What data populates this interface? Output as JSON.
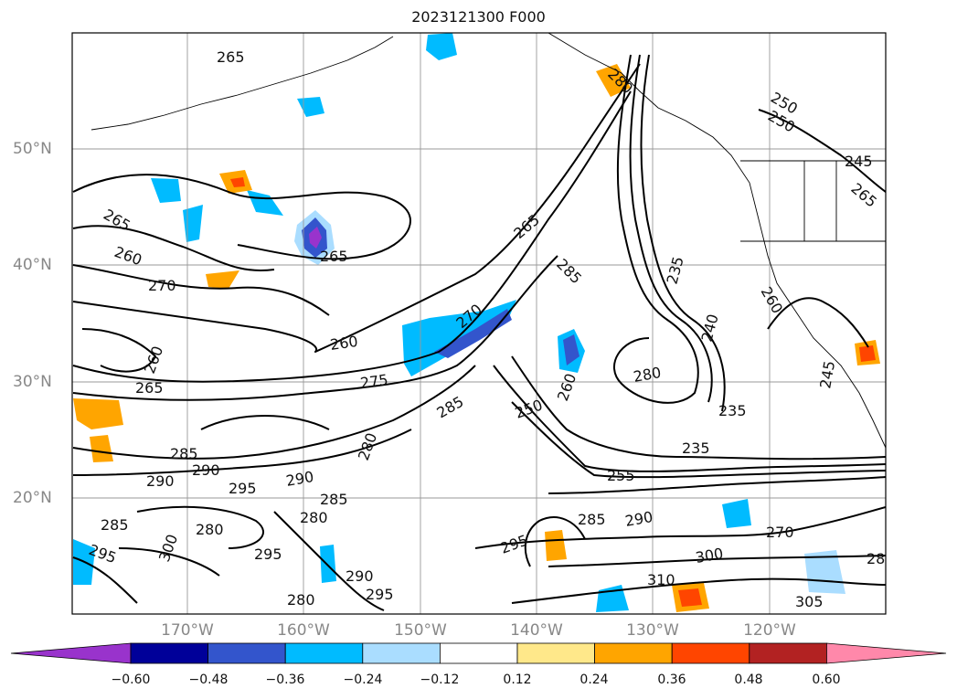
{
  "title": "2023121300 F000",
  "lat_labels": [
    "50°N",
    "40°N",
    "30°N",
    "20°N"
  ],
  "lon_labels": [
    "170°W",
    "160°W",
    "150°W",
    "140°W",
    "130°W",
    "120°W"
  ],
  "colorbar": {
    "ticks": [
      "−0.60",
      "−0.48",
      "−0.36",
      "−0.24",
      "−0.12",
      "0.12",
      "0.24",
      "0.36",
      "0.48",
      "0.60"
    ],
    "colors": [
      "#9933cc",
      "#000099",
      "#3355cc",
      "#00bbff",
      "#aaddff",
      "#ffffff",
      "#ffe88a",
      "#ffa500",
      "#ff4500",
      "#b22222",
      "#ff88aa"
    ]
  },
  "contour_labels": [
    "265",
    "265",
    "260",
    "270",
    "265",
    "260",
    "260",
    "265",
    "275",
    "270",
    "265",
    "285",
    "235",
    "280",
    "240",
    "235",
    "235",
    "255",
    "250",
    "260",
    "250",
    "245",
    "245",
    "260",
    "285",
    "290",
    "290",
    "295",
    "285",
    "280",
    "280",
    "285",
    "295",
    "300",
    "310",
    "305",
    "280",
    "290",
    "295",
    "270",
    "250",
    "265",
    "285",
    "290",
    "300",
    "295",
    "280",
    "285",
    "280",
    "290",
    "295",
    "285"
  ]
}
